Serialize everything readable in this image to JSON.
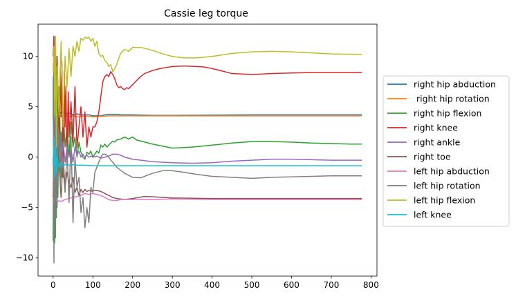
{
  "chart_data": {
    "type": "line",
    "title": "Cassie leg torque",
    "xlabel": "",
    "ylabel": "",
    "xlim": [
      -38,
      815
    ],
    "ylim": [
      -11.8,
      13.2
    ],
    "xticks": [
      0,
      100,
      200,
      300,
      400,
      500,
      600,
      700,
      800
    ],
    "yticks": [
      -10,
      -5,
      0,
      5,
      10
    ],
    "grid": false,
    "legend_position": "outside-right",
    "series": [
      {
        "name": "right hip abduction",
        "color": "#1f77b4",
        "x": [
          0,
          2,
          4,
          6,
          8,
          10,
          15,
          20,
          30,
          40,
          50,
          60,
          70,
          80,
          90,
          100,
          110,
          120,
          130,
          140,
          150,
          160,
          170,
          180,
          200,
          250,
          300,
          400,
          500,
          600,
          700,
          777
        ],
        "y": [
          4.0,
          9.5,
          1.0,
          6.0,
          3.5,
          5.0,
          4.2,
          4.5,
          4.3,
          4.4,
          4.2,
          4.3,
          4.2,
          4.2,
          4.2,
          4.1,
          4.1,
          4.1,
          4.2,
          4.25,
          4.25,
          4.25,
          4.2,
          4.2,
          4.2,
          4.15,
          4.15,
          4.18,
          4.2,
          4.2,
          4.2,
          4.2
        ]
      },
      {
        "name": " right hip rotation",
        "color": "#ff7f0e",
        "x": [
          0,
          2,
          4,
          6,
          8,
          10,
          15,
          20,
          30,
          40,
          50,
          60,
          80,
          100,
          120,
          140,
          160,
          180,
          200,
          300,
          400,
          500,
          600,
          700,
          777
        ],
        "y": [
          4.0,
          2.0,
          7.0,
          3.0,
          5.0,
          4.0,
          4.2,
          4.0,
          4.2,
          4.0,
          4.1,
          4.0,
          4.1,
          4.0,
          4.05,
          4.1,
          4.1,
          4.1,
          4.1,
          4.1,
          4.1,
          4.1,
          4.1,
          4.1,
          4.1
        ]
      },
      {
        "name": "right hip flexion",
        "color": "#2ca02c",
        "x": [
          0,
          2,
          4,
          6,
          8,
          10,
          12,
          15,
          20,
          25,
          30,
          35,
          40,
          45,
          50,
          55,
          60,
          65,
          70,
          75,
          80,
          85,
          90,
          95,
          100,
          105,
          110,
          115,
          120,
          125,
          130,
          135,
          140,
          145,
          150,
          155,
          160,
          170,
          180,
          190,
          200,
          210,
          250,
          300,
          350,
          400,
          450,
          500,
          550,
          600,
          650,
          700,
          750,
          777
        ],
        "y": [
          -8.3,
          12.0,
          -8.5,
          8.5,
          -6.0,
          10.0,
          -4.0,
          7.0,
          -2.0,
          5.0,
          1.0,
          3.0,
          0.0,
          3.5,
          1.0,
          2.0,
          0.0,
          1.5,
          0.5,
          0.0,
          -0.2,
          0.5,
          0.3,
          0.6,
          0.0,
          0.3,
          0.6,
          0.4,
          1.2,
          1.0,
          1.3,
          1.0,
          1.2,
          1.4,
          1.6,
          1.5,
          1.7,
          1.8,
          2.0,
          1.8,
          2.0,
          1.7,
          1.3,
          0.9,
          1.0,
          1.2,
          1.4,
          1.55,
          1.55,
          1.5,
          1.4,
          1.35,
          1.3,
          1.3
        ]
      },
      {
        "name": "right knee",
        "color": "#d62728",
        "x": [
          0,
          2,
          4,
          6,
          8,
          10,
          12,
          15,
          18,
          20,
          22,
          25,
          28,
          30,
          32,
          35,
          38,
          40,
          45,
          50,
          55,
          60,
          65,
          70,
          75,
          80,
          85,
          90,
          95,
          100,
          105,
          110,
          115,
          120,
          125,
          130,
          135,
          140,
          145,
          150,
          155,
          160,
          165,
          170,
          175,
          180,
          185,
          190,
          200,
          210,
          220,
          230,
          250,
          270,
          300,
          330,
          360,
          380,
          400,
          420,
          450,
          500,
          550,
          600,
          650,
          700,
          777
        ],
        "y": [
          10.0,
          12.0,
          5.0,
          11.5,
          3.0,
          10.0,
          7.0,
          2.0,
          9.0,
          4.0,
          9.5,
          -2.0,
          8.5,
          3.0,
          7.0,
          0.0,
          6.5,
          2.0,
          5.5,
          1.5,
          7.0,
          1.0,
          3.0,
          5.0,
          2.0,
          4.5,
          1.0,
          3.0,
          2.0,
          3.0,
          3.0,
          3.5,
          4.5,
          6.0,
          7.5,
          8.0,
          8.2,
          8.0,
          8.5,
          8.2,
          7.8,
          7.2,
          6.9,
          7.0,
          6.8,
          6.7,
          6.9,
          6.8,
          7.2,
          7.6,
          8.0,
          8.3,
          8.6,
          8.8,
          9.0,
          9.05,
          9.0,
          8.95,
          8.8,
          8.6,
          8.3,
          8.2,
          8.3,
          8.35,
          8.4,
          8.4,
          8.4
        ]
      },
      {
        "name": "right ankle",
        "color": "#9467bd",
        "x": [
          0,
          2,
          4,
          6,
          8,
          10,
          15,
          20,
          25,
          30,
          35,
          40,
          45,
          50,
          55,
          60,
          65,
          70,
          75,
          80,
          85,
          90,
          95,
          100,
          110,
          120,
          130,
          140,
          150,
          160,
          170,
          180,
          200,
          250,
          300,
          350,
          400,
          450,
          500,
          550,
          600,
          650,
          700,
          777
        ],
        "y": [
          0.0,
          -4.0,
          5.0,
          -2.0,
          3.0,
          0.0,
          2.0,
          -1.0,
          1.5,
          -0.5,
          1.0,
          0.0,
          0.8,
          -0.5,
          1.0,
          0.2,
          0.6,
          0.0,
          0.3,
          0.0,
          0.2,
          0.0,
          0.1,
          0.0,
          0.1,
          -0.1,
          0.0,
          0.1,
          0.3,
          0.3,
          0.2,
          0.0,
          -0.2,
          -0.45,
          -0.55,
          -0.6,
          -0.55,
          -0.4,
          -0.3,
          -0.2,
          -0.2,
          -0.25,
          -0.3,
          -0.3
        ]
      },
      {
        "name": "right toe",
        "color": "#8c564b",
        "x": [
          0,
          2,
          4,
          6,
          8,
          10,
          15,
          20,
          25,
          30,
          35,
          40,
          45,
          50,
          55,
          60,
          65,
          70,
          75,
          80,
          85,
          90,
          95,
          100,
          110,
          120,
          130,
          140,
          150,
          160,
          170,
          180,
          200,
          230,
          260,
          300,
          400,
          500,
          600,
          700,
          777
        ],
        "y": [
          -4.0,
          1.0,
          -6.0,
          0.0,
          -3.0,
          2.0,
          -1.0,
          -4.0,
          0.0,
          -3.0,
          -1.5,
          -2.5,
          -3.0,
          -2.0,
          -3.5,
          -3.0,
          -3.8,
          -3.2,
          -3.5,
          -3.2,
          -3.4,
          -3.3,
          -3.4,
          -3.3,
          -3.3,
          -3.4,
          -3.6,
          -3.8,
          -4.0,
          -4.1,
          -4.15,
          -4.2,
          -4.1,
          -3.9,
          -3.95,
          -4.05,
          -4.1,
          -4.1,
          -4.1,
          -4.1,
          -4.1
        ]
      },
      {
        "name": "left hip abduction",
        "color": "#e377c2",
        "x": [
          0,
          3,
          6,
          10,
          15,
          20,
          30,
          40,
          50,
          60,
          70,
          80,
          90,
          100,
          110,
          120,
          130,
          140,
          150,
          160,
          170,
          180,
          200,
          250,
          300,
          400,
          500,
          600,
          700,
          777
        ],
        "y": [
          -4.2,
          -4.6,
          -3.8,
          -4.5,
          -4.3,
          -4.4,
          -4.2,
          -4.1,
          -4.0,
          -3.9,
          -3.8,
          -3.6,
          -3.7,
          -3.6,
          -3.7,
          -3.8,
          -4.0,
          -4.2,
          -4.3,
          -4.3,
          -4.2,
          -4.2,
          -4.2,
          -4.2,
          -4.15,
          -4.2,
          -4.2,
          -4.2,
          -4.2,
          -4.2
        ]
      },
      {
        "name": "left hip rotation",
        "color": "#7f7f7f",
        "x": [
          0,
          2,
          4,
          6,
          8,
          10,
          12,
          15,
          18,
          20,
          25,
          30,
          35,
          40,
          45,
          50,
          55,
          60,
          65,
          70,
          75,
          80,
          85,
          90,
          95,
          100,
          105,
          110,
          115,
          120,
          125,
          130,
          135,
          140,
          145,
          150,
          160,
          170,
          180,
          190,
          200,
          220,
          250,
          280,
          300,
          330,
          360,
          400,
          450,
          500,
          550,
          600,
          650,
          700,
          777
        ],
        "y": [
          8.0,
          -10.5,
          7.0,
          -8.0,
          5.0,
          -5.0,
          3.0,
          2.0,
          -3.0,
          2.5,
          -1.0,
          -3.5,
          1.0,
          -4.5,
          2.0,
          -6.5,
          0.0,
          -3.0,
          -2.0,
          -5.5,
          -4.0,
          -7.0,
          -5.0,
          -6.5,
          -3.0,
          -3.5,
          -1.5,
          -1.0,
          -0.5,
          0.0,
          0.3,
          0.3,
          0.2,
          0.0,
          -0.3,
          -0.5,
          -1.0,
          -1.3,
          -1.6,
          -1.8,
          -2.0,
          -2.05,
          -1.6,
          -1.3,
          -1.35,
          -1.5,
          -1.7,
          -1.9,
          -2.0,
          -2.1,
          -2.0,
          -1.95,
          -1.9,
          -1.85,
          -1.85
        ]
      },
      {
        "name": "left hip flexion",
        "color": "#bcbd22",
        "x": [
          0,
          2,
          4,
          6,
          8,
          10,
          15,
          20,
          25,
          30,
          35,
          40,
          45,
          50,
          55,
          60,
          65,
          70,
          75,
          80,
          85,
          90,
          95,
          100,
          105,
          110,
          115,
          120,
          125,
          130,
          135,
          140,
          145,
          150,
          155,
          160,
          165,
          170,
          175,
          180,
          190,
          200,
          220,
          250,
          280,
          300,
          330,
          360,
          400,
          450,
          500,
          550,
          600,
          650,
          700,
          777
        ],
        "y": [
          8.5,
          11.0,
          4.0,
          12.0,
          1.0,
          9.0,
          4.0,
          11.5,
          3.0,
          10.0,
          7.0,
          10.8,
          8.0,
          11.0,
          10.0,
          11.5,
          10.5,
          11.8,
          11.6,
          11.9,
          11.8,
          11.9,
          11.5,
          11.8,
          11.0,
          11.5,
          10.3,
          10.0,
          10.1,
          9.6,
          9.4,
          9.0,
          9.2,
          8.5,
          8.8,
          9.2,
          9.8,
          10.3,
          10.5,
          10.7,
          10.5,
          10.9,
          10.9,
          10.6,
          10.2,
          10.0,
          9.85,
          9.85,
          10.0,
          10.3,
          10.45,
          10.5,
          10.45,
          10.35,
          10.25,
          10.2
        ]
      },
      {
        "name": "left knee",
        "color": "#17becf",
        "x": [
          0,
          2,
          4,
          6,
          8,
          10,
          15,
          20,
          25,
          30,
          40,
          50,
          60,
          80,
          100,
          120,
          150,
          200,
          300,
          400,
          500,
          600,
          700,
          777
        ],
        "y": [
          -0.8,
          2.0,
          -2.0,
          1.0,
          -1.5,
          0.0,
          -1.0,
          -0.6,
          -0.9,
          -0.7,
          -0.8,
          -0.75,
          -0.8,
          -0.8,
          -0.85,
          -0.85,
          -0.85,
          -0.85,
          -0.85,
          -0.85,
          -0.85,
          -0.85,
          -0.85,
          -0.85
        ]
      }
    ]
  }
}
